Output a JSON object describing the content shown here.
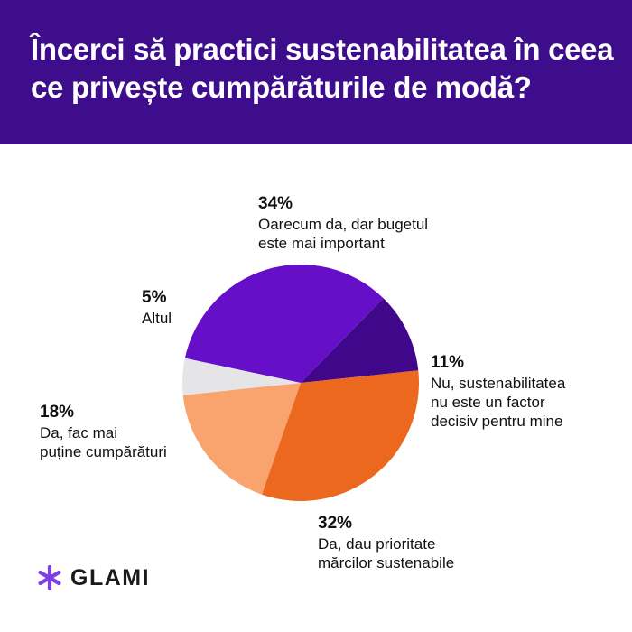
{
  "header": {
    "title_line1": "Încerci să practici sustenabilitatea în ceea",
    "title_line2": "ce privește cumpărăturile de modă?",
    "background": "#3d0d8c"
  },
  "chart_data": {
    "type": "pie",
    "title": "Încerci să practici sustenabilitatea în ceea ce privește cumpărăturile de modă?",
    "slices": [
      {
        "label": "Oarecum da, dar bugetul este mai important",
        "value": 34,
        "pct_label": "34%",
        "color": "#6510c8"
      },
      {
        "label": "Nu, sustenabilitatea nu este un factor decisiv pentru mine",
        "value": 11,
        "pct_label": "11%",
        "color": "#40078a"
      },
      {
        "label": "Da, dau prioritate mărcilor sustenabile",
        "value": 32,
        "pct_label": "32%",
        "color": "#ec681e"
      },
      {
        "label": "Da, fac mai puține cumpărături",
        "value": 18,
        "pct_label": "18%",
        "color": "#f9a36e"
      },
      {
        "label": "Altul",
        "value": 5,
        "pct_label": "5%",
        "color": "#e5e5e8"
      }
    ]
  },
  "labels": {
    "budget_pct": "34%",
    "budget_text": "Oarecum da, dar bugetul\neste mai important",
    "nu_pct": "11%",
    "nu_text": "Nu, sustenabilitatea\nnu este un factor\ndecisiv pentru mine",
    "da_pct": "32%",
    "da_text": "Da, dau prioritate\nmărcilor sustenabile",
    "fac_pct": "18%",
    "fac_text": "Da, fac mai\npuține cumpărături",
    "altul_pct": "5%",
    "altul_text": "Altul"
  },
  "logo": {
    "text": "GLAMI",
    "icon": "asterisk-icon",
    "color": "#7b3fe4"
  }
}
